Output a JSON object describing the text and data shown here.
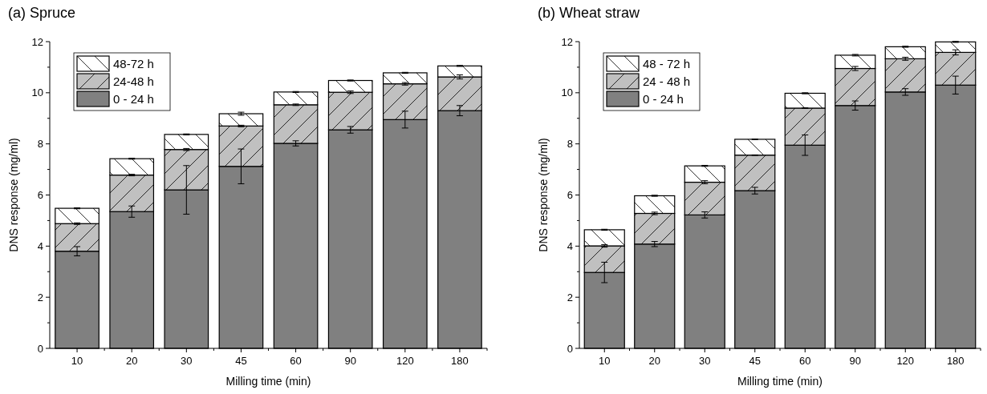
{
  "chart_data": [
    {
      "type": "bar",
      "title": "(a) Spruce",
      "xlabel": "Milling time (min)",
      "ylabel": "DNS response (mg/ml)",
      "stacked": true,
      "categories": [
        "10",
        "20",
        "30",
        "45",
        "60",
        "90",
        "120",
        "180"
      ],
      "ylim": [
        0,
        12
      ],
      "yticks": [
        0,
        {
          "value": 1,
          "label": null
        },
        2,
        {
          "value": 3,
          "label": null
        },
        4,
        {
          "value": 5,
          "label": null
        },
        6,
        {
          "value": 7,
          "label": null
        },
        8,
        {
          "value": 9,
          "label": null
        },
        10,
        {
          "value": 11,
          "label": null
        },
        12
      ],
      "legend": "top left",
      "grid": false,
      "series": [
        {
          "name": "0 - 24 h",
          "color": "#808080",
          "values": [
            3.8,
            5.35,
            6.2,
            7.12,
            8.02,
            8.55,
            8.95,
            9.3
          ],
          "errors": [
            0.18,
            0.22,
            0.95,
            0.68,
            0.1,
            0.13,
            0.33,
            0.2
          ]
        },
        {
          "name": "24-48 h",
          "color": "#c0c0c0",
          "values": [
            1.08,
            1.43,
            1.58,
            1.58,
            1.51,
            1.47,
            1.4,
            1.32
          ],
          "errors": [
            0.03,
            0.03,
            0.04,
            0.03,
            0.03,
            0.05,
            0.05,
            0.08
          ]
        },
        {
          "name": "48-72 h",
          "color": "#ffffff",
          "values": [
            0.6,
            0.64,
            0.59,
            0.48,
            0.5,
            0.46,
            0.43,
            0.43
          ],
          "errors": [
            0.02,
            0.02,
            0.02,
            0.06,
            0.02,
            0.02,
            0.02,
            0.02
          ]
        }
      ]
    },
    {
      "type": "bar",
      "title": "(b) Wheat straw",
      "xlabel": "Milling time (min)",
      "ylabel": "DNS response (mg/ml)",
      "stacked": true,
      "categories": [
        "10",
        "20",
        "30",
        "45",
        "60",
        "90",
        "120",
        "180"
      ],
      "ylim": [
        0,
        12
      ],
      "yticks": [
        0,
        {
          "value": 1,
          "label": null
        },
        2,
        {
          "value": 3,
          "label": null
        },
        4,
        {
          "value": 5,
          "label": null
        },
        6,
        {
          "value": 7,
          "label": null
        },
        8,
        {
          "value": 9,
          "label": null
        },
        10,
        {
          "value": 11,
          "label": null
        },
        12
      ],
      "legend": "top left",
      "grid": false,
      "series": [
        {
          "name": "0 - 24 h",
          "color": "#808080",
          "values": [
            2.97,
            4.08,
            5.22,
            6.17,
            7.95,
            9.5,
            10.03,
            10.3
          ],
          "errors": [
            0.4,
            0.1,
            0.12,
            0.13,
            0.4,
            0.18,
            0.13,
            0.35
          ]
        },
        {
          "name": "24 - 48 h",
          "color": "#c0c0c0",
          "values": [
            1.04,
            1.2,
            1.28,
            1.39,
            1.45,
            1.45,
            1.3,
            1.28
          ],
          "errors": [
            0.05,
            0.05,
            0.06,
            0.01,
            0.01,
            0.08,
            0.06,
            0.1
          ]
        },
        {
          "name": "48 - 72 h",
          "color": "#ffffff",
          "values": [
            0.63,
            0.69,
            0.64,
            0.62,
            0.58,
            0.52,
            0.47,
            0.41
          ],
          "errors": [
            0.02,
            0.02,
            0.02,
            0.01,
            0.02,
            0.03,
            0.02,
            0.02
          ]
        }
      ]
    }
  ]
}
